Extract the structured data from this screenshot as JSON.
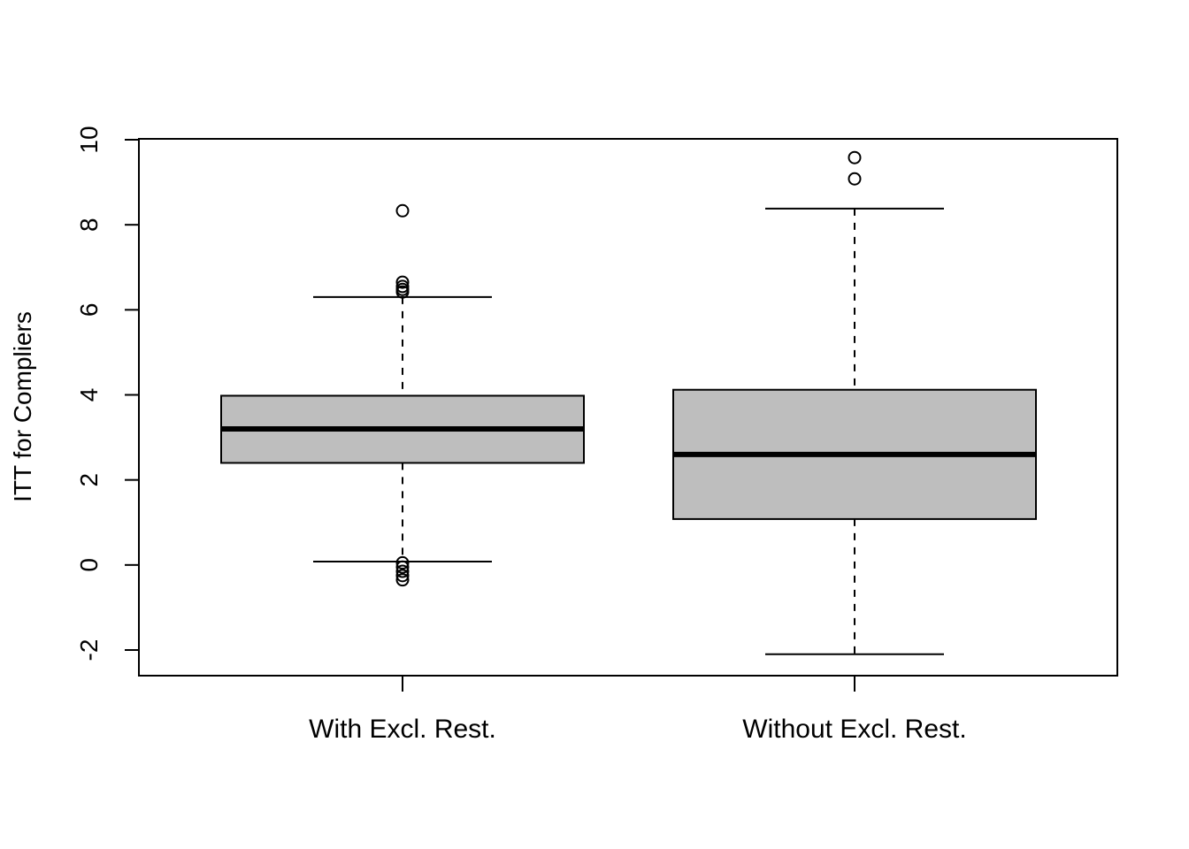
{
  "chart_data": {
    "type": "boxplot",
    "title": "",
    "xlabel": "",
    "ylabel": "ITT for Compliers",
    "ylim": [
      -2.6,
      10.0
    ],
    "yticks": [
      -2,
      0,
      2,
      4,
      6,
      8,
      10
    ],
    "grid": false,
    "box_fill": "#bebebe",
    "categories": [
      "With Excl. Rest.",
      "Without Excl. Rest."
    ],
    "boxes": [
      {
        "label": "With Excl. Rest.",
        "whisker_low": 0.08,
        "q1": 2.4,
        "median": 3.2,
        "q3": 3.98,
        "whisker_high": 6.3,
        "outliers": [
          8.33,
          6.65,
          6.55,
          6.48,
          6.42,
          0.05,
          -0.05,
          -0.15,
          -0.25,
          -0.35
        ]
      },
      {
        "label": "Without Excl. Rest.",
        "whisker_low": -2.1,
        "q1": 1.08,
        "median": 2.6,
        "q3": 4.12,
        "whisker_high": 8.38,
        "outliers": [
          9.08,
          9.58
        ]
      }
    ]
  }
}
